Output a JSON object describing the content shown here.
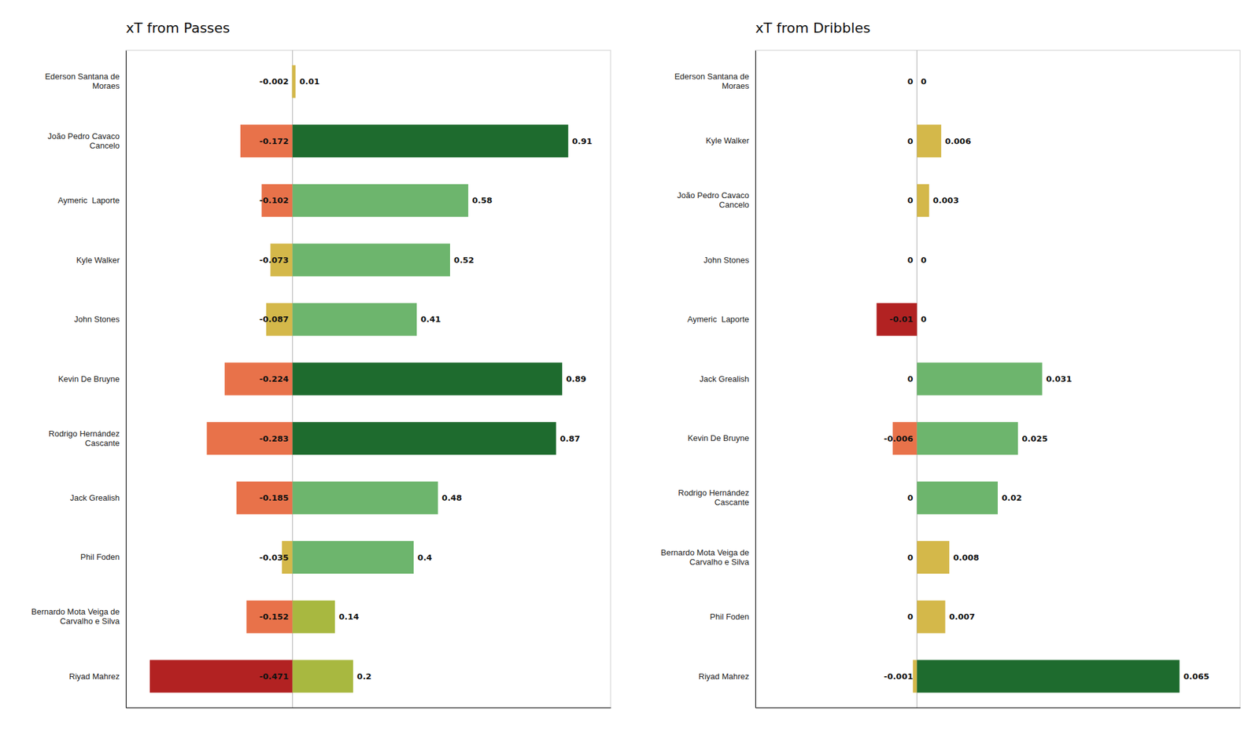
{
  "chart_data": [
    {
      "type": "bar",
      "orientation": "horizontal",
      "stacked": true,
      "data_labels": true,
      "tick_labels": "y",
      "title": "xT from Passes",
      "categories": [
        "Ederson Santana de\nMoraes",
        "João Pedro Cavaco\nCancelo",
        "Aymeric  Laporte",
        "Kyle Walker",
        "John Stones",
        "Kevin De Bruyne",
        "Rodrigo Hernández\nCascante",
        "Jack Grealish",
        "Phil Foden",
        "Bernardo Mota Veiga de\nCarvalho e Silva",
        "Riyad Mahrez"
      ],
      "series": [
        {
          "colors": [
            "#D4B84A",
            "#E8724A",
            "#E8724A",
            "#D4B84A",
            "#D4B84A",
            "#E8724A",
            "#E8724A",
            "#E8724A",
            "#D4B84A",
            "#E8724A",
            "#B22222"
          ],
          "values": [
            -0.002,
            -0.172,
            -0.102,
            -0.073,
            -0.087,
            -0.224,
            -0.283,
            -0.185,
            -0.035,
            -0.152,
            -0.471
          ]
        },
        {
          "colors": [
            "#D4B84A",
            "#1E6B2E",
            "#6DB56D",
            "#6DB56D",
            "#6DB56D",
            "#1E6B2E",
            "#1E6B2E",
            "#6DB56D",
            "#6DB56D",
            "#A8B840",
            "#A8B840"
          ],
          "values": [
            0.01,
            0.91,
            0.58,
            0.52,
            0.41,
            0.89,
            0.87,
            0.48,
            0.4,
            0.14,
            0.2
          ]
        }
      ],
      "xlim": [
        -0.55,
        1.05
      ]
    },
    {
      "type": "bar",
      "orientation": "horizontal",
      "stacked": true,
      "data_labels": true,
      "tick_labels": "y",
      "title": "xT from Dribbles",
      "categories": [
        "Ederson Santana de\nMoraes",
        "Kyle Walker",
        "João Pedro Cavaco\nCancelo",
        "John Stones",
        "Aymeric  Laporte",
        "Jack Grealish",
        "Kevin De Bruyne",
        "Rodrigo Hernández\nCascante",
        "Bernardo Mota Veiga de\nCarvalho e Silva",
        "Phil Foden",
        "Riyad Mahrez"
      ],
      "series": [
        {
          "colors": [
            "#D4B84A",
            "#D4B84A",
            "#D4B84A",
            "#D4B84A",
            "#B22222",
            "#D4B84A",
            "#E8724A",
            "#D4B84A",
            "#D4B84A",
            "#D4B84A",
            "#D4B84A"
          ],
          "values": [
            0,
            0,
            0,
            0,
            -0.01,
            0,
            -0.006,
            0,
            0,
            0,
            -0.001
          ]
        },
        {
          "colors": [
            "#D4B84A",
            "#D4B84A",
            "#D4B84A",
            "#D4B84A",
            "#D4B84A",
            "#6DB56D",
            "#6DB56D",
            "#6DB56D",
            "#D4B84A",
            "#D4B84A",
            "#1E6B2E"
          ],
          "values": [
            0,
            0.006,
            0.003,
            0,
            0,
            0.031,
            0.025,
            0.02,
            0.008,
            0.007,
            0.065
          ]
        }
      ],
      "xlim": [
        -0.04,
        0.08
      ]
    }
  ]
}
